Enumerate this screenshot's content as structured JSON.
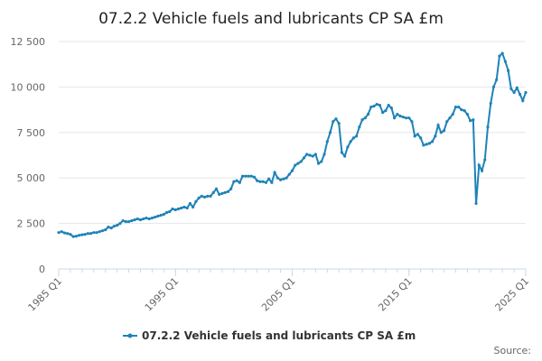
{
  "chart_data": {
    "type": "line",
    "title": "07.2.2 Vehicle fuels and lubricants CP SA £m",
    "source": "Source:",
    "categories": [
      "1985 Q1",
      null,
      null,
      null,
      null,
      null,
      null,
      null,
      null,
      null,
      null,
      null,
      null,
      null,
      null,
      null,
      null,
      null,
      null,
      null,
      null,
      null,
      null,
      null,
      null,
      null,
      null,
      null,
      null,
      null,
      null,
      null,
      null,
      null,
      null,
      null,
      null,
      null,
      null,
      null,
      "1995 Q1",
      null,
      null,
      null,
      null,
      null,
      null,
      null,
      null,
      null,
      null,
      null,
      null,
      null,
      null,
      null,
      null,
      null,
      null,
      null,
      null,
      null,
      null,
      null,
      null,
      null,
      null,
      null,
      null,
      null,
      null,
      null,
      null,
      null,
      null,
      null,
      null,
      null,
      null,
      null,
      "2005 Q1",
      null,
      null,
      null,
      null,
      null,
      null,
      null,
      null,
      null,
      null,
      null,
      null,
      null,
      null,
      null,
      null,
      null,
      null,
      null,
      null,
      null,
      null,
      null,
      null,
      null,
      null,
      null,
      null,
      null,
      null,
      null,
      null,
      null,
      null,
      null,
      null,
      null,
      null,
      null,
      "2015 Q1",
      null,
      null,
      null,
      null,
      null,
      null,
      null,
      null,
      null,
      null,
      null,
      null,
      null,
      null,
      null,
      null,
      null,
      null,
      null,
      null,
      null,
      null,
      null,
      null,
      null,
      null,
      null,
      null,
      null,
      null,
      null,
      null,
      null,
      null,
      null,
      null,
      null,
      null,
      null,
      "2025 Q1"
    ],
    "series": [
      {
        "name": "07.2.2 Vehicle fuels and lubricants CP SA £m",
        "color": "#1f83b8",
        "values": [
          2000,
          2050,
          1980,
          1950,
          1900,
          1780,
          1800,
          1850,
          1880,
          1900,
          1950,
          1950,
          2000,
          2000,
          2050,
          2100,
          2150,
          2300,
          2250,
          2350,
          2400,
          2500,
          2650,
          2600,
          2600,
          2650,
          2700,
          2750,
          2700,
          2750,
          2800,
          2750,
          2800,
          2850,
          2900,
          2950,
          3000,
          3100,
          3150,
          3300,
          3250,
          3300,
          3350,
          3400,
          3350,
          3600,
          3400,
          3700,
          3900,
          4000,
          3950,
          4000,
          4000,
          4200,
          4400,
          4100,
          4150,
          4200,
          4250,
          4400,
          4800,
          4850,
          4750,
          5100,
          5100,
          5100,
          5100,
          5050,
          4850,
          4800,
          4800,
          4750,
          4950,
          4750,
          5300,
          5000,
          4900,
          4950,
          5000,
          5200,
          5400,
          5700,
          5800,
          5900,
          6100,
          6300,
          6250,
          6200,
          6300,
          5800,
          5900,
          6300,
          7000,
          7500,
          8100,
          8250,
          8000,
          6400,
          6200,
          6700,
          7000,
          7200,
          7300,
          7800,
          8200,
          8300,
          8500,
          8900,
          8950,
          9050,
          9000,
          8600,
          8700,
          9000,
          8850,
          8300,
          8500,
          8400,
          8350,
          8300,
          8300,
          8100,
          7300,
          7400,
          7200,
          6800,
          6850,
          6900,
          7000,
          7300,
          7900,
          7500,
          7600,
          8100,
          8300,
          8500,
          8900,
          8900,
          8750,
          8700,
          8500,
          8150,
          8200,
          3600,
          5700,
          5400,
          6000,
          7800,
          9100,
          10000,
          10400,
          11700,
          11850,
          11400,
          10900,
          9900,
          9700,
          9950,
          9600,
          9250,
          9700
        ]
      }
    ],
    "ylim": [
      0,
      12500
    ],
    "yticks": [
      0,
      {
        "value": 2500,
        "label": "2 500"
      },
      {
        "value": 5000,
        "label": "5 000"
      },
      {
        "value": 7500,
        "label": "7 500"
      },
      {
        "value": 10000,
        "label": "10 000"
      },
      {
        "value": 12500,
        "label": "12 500"
      }
    ],
    "grid": true,
    "legend": "bottom"
  }
}
